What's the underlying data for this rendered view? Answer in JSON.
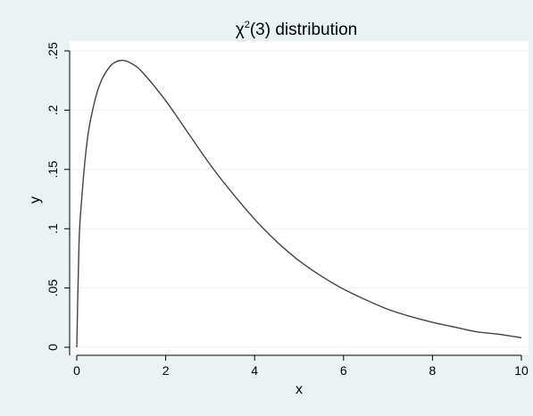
{
  "chart_data": {
    "type": "line",
    "title_main": "χ",
    "title_sup": "2",
    "title_rest": "(3) distribution",
    "xlabel": "x",
    "ylabel": "y",
    "xlim": [
      0,
      10
    ],
    "ylim": [
      0,
      0.25
    ],
    "x_ticks": [
      {
        "value": 0,
        "label": "0"
      },
      {
        "value": 2,
        "label": "2"
      },
      {
        "value": 4,
        "label": "4"
      },
      {
        "value": 6,
        "label": "6"
      },
      {
        "value": 8,
        "label": "8"
      },
      {
        "value": 10,
        "label": "10"
      }
    ],
    "y_ticks": [
      {
        "value": 0,
        "label": "0"
      },
      {
        "value": 0.05,
        "label": ".05"
      },
      {
        "value": 0.1,
        "label": ".1"
      },
      {
        "value": 0.15,
        "label": ".15"
      },
      {
        "value": 0.2,
        "label": ".2"
      },
      {
        "value": 0.25,
        "label": ".25"
      }
    ],
    "grid": true,
    "series": [
      {
        "color": "#444444",
        "x": [
          0,
          0.05,
          0.1,
          0.2,
          0.3,
          0.5,
          0.75,
          1,
          1.25,
          1.5,
          2,
          2.5,
          3,
          3.5,
          4,
          4.5,
          5,
          5.5,
          6,
          6.5,
          7,
          7.5,
          8,
          8.5,
          9,
          9.5,
          10
        ],
        "y": [
          0,
          0.087,
          0.12,
          0.163,
          0.19,
          0.22,
          0.237,
          0.242,
          0.239,
          0.231,
          0.208,
          0.181,
          0.154,
          0.13,
          0.108,
          0.089,
          0.073,
          0.06,
          0.049,
          0.04,
          0.032,
          0.026,
          0.021,
          0.017,
          0.013,
          0.011,
          0.008
        ]
      }
    ],
    "colors": {
      "outer_background": "#eaf2f3",
      "plot_background": "#ffffff",
      "grid": "#eaf2f3",
      "axis": "#000000"
    }
  }
}
